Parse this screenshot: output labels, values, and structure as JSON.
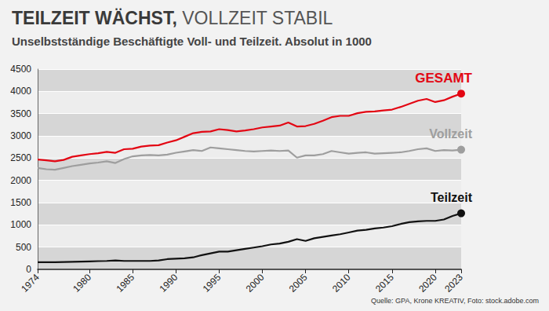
{
  "chart_data": {
    "type": "line",
    "title": "TEILZEIT WÄCHST, VOLLZEIT STABIL",
    "subtitle": "Unselbstständige Beschäftigte Voll- und Teilzeit. Absolut in 1000",
    "source": "Quelle: GPA, Krone KREATIV, Foto: stock.adobe.com",
    "x": [
      1974,
      1975,
      1976,
      1977,
      1978,
      1979,
      1980,
      1981,
      1982,
      1983,
      1984,
      1985,
      1986,
      1987,
      1988,
      1989,
      1990,
      1991,
      1992,
      1993,
      1994,
      1995,
      1996,
      1997,
      1998,
      1999,
      2000,
      2001,
      2002,
      2003,
      2004,
      2005,
      2006,
      2007,
      2008,
      2009,
      2010,
      2011,
      2012,
      2013,
      2014,
      2015,
      2016,
      2017,
      2018,
      2019,
      2020,
      2021,
      2022,
      2023
    ],
    "xlim": [
      1974,
      2023
    ],
    "xticks": [
      1974,
      1980,
      1985,
      1990,
      1995,
      2000,
      2005,
      2010,
      2015,
      2020,
      2023
    ],
    "ylim": [
      0,
      4500
    ],
    "yticks": [
      0,
      500,
      1000,
      1500,
      2000,
      2500,
      3000,
      3500,
      4000,
      4500
    ],
    "grid": true,
    "series": [
      {
        "name": "GESAMT",
        "color": "#e30613",
        "values": [
          2470,
          2450,
          2430,
          2460,
          2530,
          2560,
          2590,
          2610,
          2640,
          2620,
          2700,
          2710,
          2760,
          2780,
          2790,
          2850,
          2900,
          2980,
          3060,
          3090,
          3100,
          3150,
          3130,
          3100,
          3120,
          3150,
          3190,
          3210,
          3230,
          3300,
          3210,
          3220,
          3270,
          3340,
          3420,
          3450,
          3450,
          3510,
          3540,
          3550,
          3570,
          3590,
          3650,
          3720,
          3790,
          3830,
          3760,
          3800,
          3880,
          3950
        ]
      },
      {
        "name": "Vollzeit",
        "color": "#9e9e9e",
        "values": [
          2280,
          2250,
          2240,
          2280,
          2320,
          2350,
          2380,
          2400,
          2430,
          2390,
          2480,
          2540,
          2560,
          2570,
          2560,
          2580,
          2620,
          2650,
          2680,
          2660,
          2740,
          2720,
          2700,
          2680,
          2660,
          2650,
          2660,
          2670,
          2660,
          2670,
          2510,
          2560,
          2560,
          2590,
          2660,
          2630,
          2600,
          2620,
          2630,
          2600,
          2610,
          2620,
          2630,
          2660,
          2700,
          2720,
          2660,
          2680,
          2670,
          2690
        ]
      },
      {
        "name": "Teilzeit",
        "color": "#111111",
        "values": [
          160,
          160,
          160,
          165,
          170,
          175,
          180,
          185,
          190,
          200,
          190,
          190,
          190,
          190,
          200,
          230,
          240,
          250,
          270,
          320,
          360,
          400,
          400,
          430,
          460,
          490,
          520,
          560,
          580,
          620,
          680,
          640,
          700,
          730,
          760,
          790,
          830,
          870,
          890,
          920,
          940,
          970,
          1020,
          1060,
          1080,
          1090,
          1090,
          1120,
          1200,
          1260
        ]
      }
    ]
  }
}
